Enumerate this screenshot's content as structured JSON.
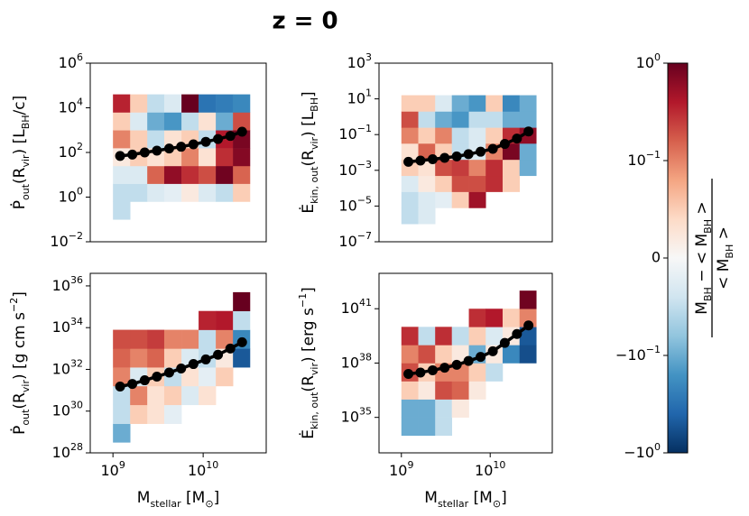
{
  "title": "z = 0",
  "colorbar": {
    "colors": [
      "#053061",
      "#2166ac",
      "#4393c3",
      "#92c5de",
      "#d1e5f0",
      "#f7f7f7",
      "#fddbc7",
      "#f4a582",
      "#d6604d",
      "#b2182b",
      "#67001f"
    ],
    "scale": "symlog",
    "linthresh": 0.1,
    "lim": [
      -1,
      1
    ],
    "ticks": [
      {
        "value": 1,
        "label": "10",
        "sup": "0"
      },
      {
        "value": 0.1,
        "label": "10",
        "sup": "−1"
      },
      0,
      {
        "value": -0.1,
        "label": "−10",
        "sup": "−1"
      },
      {
        "value": -1,
        "label": "−10",
        "sup": "0"
      }
    ],
    "numerator": [
      {
        "text": "M"
      },
      {
        "text": "BH",
        "sub": true
      },
      {
        "text": " − < M"
      },
      {
        "text": "BH",
        "sub": true
      },
      {
        "text": " >"
      }
    ],
    "denominator": [
      {
        "text": "< M"
      },
      {
        "text": "BH",
        "sub": true
      },
      {
        "text": " >"
      }
    ]
  },
  "chart_data": [
    {
      "type": "heatmap",
      "log": true,
      "ylabel": [
        {
          "text": "Ṗ"
        },
        {
          "text": "out",
          "sub": true
        },
        {
          "text": "(R"
        },
        {
          "text": "vir",
          "sub": true
        },
        {
          "text": ") [L"
        },
        {
          "text": "BH",
          "sub": true
        },
        {
          "text": "/c]"
        }
      ],
      "xlim": [
        560000000.0,
        50000000000.0
      ],
      "ylim": [
        0.01,
        1000000
      ],
      "yticks": [
        {
          "value": 0.01,
          "label": "10",
          "sup": "−2"
        },
        {
          "value": 1,
          "label": "10",
          "sup": "0"
        },
        {
          "value": 100,
          "label": "10",
          "sup": "2"
        },
        {
          "value": 10000,
          "label": "10",
          "sup": "4"
        },
        {
          "value": 1000000,
          "label": "10",
          "sup": "6"
        }
      ],
      "heatmap": {
        "xbins": [
          1000000000.0,
          1550000000.0,
          2400000000.0,
          3700000000.0,
          5750000000.0,
          8900000000.0,
          13800000000.0,
          21400000000.0,
          33000000000.0
        ],
        "ybins": [
          0.1,
          0.63,
          4,
          25,
          158,
          1000,
          6300,
          40000
        ],
        "values": [
          [
            -0.05,
            null,
            null,
            null,
            null,
            null,
            null,
            null
          ],
          [
            -0.05,
            -0.05,
            -0.03,
            -0.02,
            0.02,
            -0.03,
            -0.05,
            0.05
          ],
          [
            -0.03,
            -0.03,
            0.15,
            0.6,
            0.3,
            0.2,
            0.9,
            0.15
          ],
          [
            0.02,
            0.05,
            0.03,
            0.05,
            0.1,
            0.03,
            0.3,
            0.7
          ],
          [
            0.1,
            0.05,
            -0.05,
            0.03,
            0.05,
            -0.05,
            0.4,
            0.8
          ],
          [
            0.05,
            -0.03,
            -0.1,
            -0.15,
            -0.05,
            0.03,
            -0.1,
            0.2
          ],
          [
            0.35,
            0.05,
            -0.05,
            -0.03,
            1,
            -0.3,
            -0.25,
            -0.2
          ]
        ]
      },
      "line": {
        "color": "#000000",
        "x": [
          1200000000.0,
          1640000000.0,
          2250000000.0,
          3070000000.0,
          4200000000.0,
          5700000000.0,
          7800000000.0,
          10700000000.0,
          14600000000.0,
          20000000000.0,
          27000000000.0
        ],
        "values": [
          70,
          80,
          100,
          120,
          150,
          180,
          230,
          300,
          400,
          550,
          850
        ]
      }
    },
    {
      "type": "heatmap",
      "log": true,
      "ylabel": [
        {
          "text": "Ė"
        },
        {
          "text": "kin, out",
          "sub": true
        },
        {
          "text": "(R"
        },
        {
          "text": "vir",
          "sub": true
        },
        {
          "text": ") [L"
        },
        {
          "text": "BH",
          "sub": true
        },
        {
          "text": "]"
        }
      ],
      "xlim": [
        560000000.0,
        50000000000.0
      ],
      "ylim": [
        1e-07,
        1000
      ],
      "yticks": [
        {
          "value": 1e-07,
          "label": "10",
          "sup": "−7"
        },
        {
          "value": 1e-05,
          "label": "10",
          "sup": "−5"
        },
        {
          "value": 0.001,
          "label": "10",
          "sup": "−3"
        },
        {
          "value": 0.1,
          "label": "10",
          "sup": "−1"
        },
        {
          "value": 10,
          "label": "10",
          "sup": "1"
        },
        {
          "value": 1000,
          "label": "10",
          "sup": "3"
        }
      ],
      "heatmap": {
        "xbins": [
          1000000000.0,
          1550000000.0,
          2400000000.0,
          3700000000.0,
          5750000000.0,
          8900000000.0,
          13800000000.0,
          21400000000.0,
          33000000000.0
        ],
        "ybins": [
          1e-06,
          7.9e-06,
          6.3e-05,
          0.0005,
          0.004,
          0.032,
          0.25,
          2,
          16
        ],
        "values": [
          [
            -0.05,
            -0.03,
            null,
            null,
            null,
            null,
            null,
            null
          ],
          [
            -0.05,
            -0.03,
            -0.02,
            0.05,
            0.5,
            null,
            null,
            null
          ],
          [
            -0.03,
            0.02,
            0.05,
            0.2,
            0.2,
            0.3,
            0.05,
            null
          ],
          [
            0.05,
            0.03,
            0.2,
            0.25,
            0.1,
            0.3,
            0.05,
            -0.1
          ],
          [
            0.03,
            0.15,
            0.05,
            -0.05,
            -0.03,
            0.1,
            0.8,
            -0.1
          ],
          [
            0.1,
            0.05,
            0.1,
            -0.05,
            -0.03,
            0.05,
            0.3,
            0.6
          ],
          [
            0.2,
            -0.05,
            -0.1,
            -0.15,
            -0.05,
            -0.05,
            -0.1,
            -0.1
          ],
          [
            0.05,
            0.05,
            -0.03,
            -0.1,
            -0.15,
            0.05,
            -0.2,
            -0.1
          ]
        ]
      },
      "line": {
        "color": "#000000",
        "x": [
          1200000000.0,
          1640000000.0,
          2250000000.0,
          3070000000.0,
          4200000000.0,
          5700000000.0,
          7800000000.0,
          10700000000.0,
          14600000000.0,
          20000000000.0,
          27000000000.0
        ],
        "values": [
          0.003,
          0.0035,
          0.0042,
          0.005,
          0.006,
          0.008,
          0.011,
          0.016,
          0.03,
          0.06,
          0.15
        ]
      }
    },
    {
      "type": "heatmap",
      "log": true,
      "ylabel": [
        {
          "text": "Ṗ"
        },
        {
          "text": "out",
          "sub": true
        },
        {
          "text": "(R"
        },
        {
          "text": "vir",
          "sub": true
        },
        {
          "text": ") [g cm s"
        },
        {
          "text": "−2",
          "sup": true
        },
        {
          "text": "]"
        }
      ],
      "xlabel": [
        {
          "text": "M"
        },
        {
          "text": "stellar",
          "sub": true
        },
        {
          "text": " [M"
        },
        {
          "text": "⊙",
          "sub": true
        },
        {
          "text": "]"
        }
      ],
      "xlim": [
        560000000.0,
        50000000000.0
      ],
      "ylim": [
        1e+28,
        4e+36
      ],
      "xticks": [
        {
          "value": 1000000000.0,
          "label": "10",
          "sup": "9"
        },
        {
          "value": 10000000000.0,
          "label": "10",
          "sup": "10"
        }
      ],
      "yticks": [
        {
          "value": 1e+28,
          "label": "10",
          "sup": "28"
        },
        {
          "value": 1e+30,
          "label": "10",
          "sup": "30"
        },
        {
          "value": 1e+32,
          "label": "10",
          "sup": "32"
        },
        {
          "value": 1e+34,
          "label": "10",
          "sup": "34"
        },
        {
          "value": 1e+36,
          "label": "10",
          "sup": "36"
        }
      ],
      "heatmap": {
        "xbins": [
          1000000000.0,
          1550000000.0,
          2400000000.0,
          3700000000.0,
          5750000000.0,
          8900000000.0,
          13800000000.0,
          21400000000.0,
          33000000000.0
        ],
        "ybins": [
          3.2e+28,
          2.5e+29,
          2e+30,
          1.6e+31,
          1.26e+32,
          1e+33,
          7.9e+33,
          6.3e+34,
          5e+35
        ],
        "values": [
          [
            -0.1,
            null,
            null,
            null,
            null,
            null,
            null,
            null
          ],
          [
            -0.05,
            0.05,
            0.03,
            -0.02,
            null,
            null,
            null,
            null
          ],
          [
            -0.05,
            0.1,
            0.03,
            0.05,
            -0.03,
            0.03,
            null,
            null
          ],
          [
            0.1,
            -0.03,
            0.05,
            -0.05,
            0.03,
            -0.02,
            0.05,
            null
          ],
          [
            0.15,
            0.1,
            0.15,
            0.05,
            -0.03,
            -0.05,
            0.02,
            -0.5
          ],
          [
            0.2,
            0.2,
            0.25,
            0.1,
            0.1,
            -0.05,
            0.1,
            -0.2
          ],
          [
            null,
            null,
            null,
            null,
            null,
            0.35,
            0.4,
            -0.05
          ],
          [
            null,
            null,
            null,
            null,
            null,
            null,
            null,
            1
          ]
        ]
      },
      "line": {
        "color": "#000000",
        "x": [
          1200000000.0,
          1640000000.0,
          2250000000.0,
          3070000000.0,
          4200000000.0,
          5700000000.0,
          7800000000.0,
          10700000000.0,
          14600000000.0,
          20000000000.0,
          27000000000.0
        ],
        "values": [
          1.5e+31,
          2e+31,
          3e+31,
          4.5e+31,
          7e+31,
          1.1e+32,
          1.8e+32,
          3e+32,
          5e+32,
          1e+33,
          2e+33
        ]
      }
    },
    {
      "type": "heatmap",
      "log": true,
      "ylabel": [
        {
          "text": "Ė"
        },
        {
          "text": "kin, out",
          "sub": true
        },
        {
          "text": "(R"
        },
        {
          "text": "vir",
          "sub": true
        },
        {
          "text": ") [erg s"
        },
        {
          "text": "−1",
          "sup": true
        },
        {
          "text": "]"
        }
      ],
      "xlabel": [
        {
          "text": "M"
        },
        {
          "text": "stellar",
          "sub": true
        },
        {
          "text": " [M"
        },
        {
          "text": "⊙",
          "sub": true
        },
        {
          "text": "]"
        }
      ],
      "xlim": [
        560000000.0,
        50000000000.0
      ],
      "ylim": [
        1.1e+33,
        9e+42
      ],
      "xticks": [
        {
          "value": 1000000000.0,
          "label": "10",
          "sup": "9"
        },
        {
          "value": 10000000000.0,
          "label": "10",
          "sup": "10"
        }
      ],
      "yticks": [
        {
          "value": 1e+35,
          "label": "10",
          "sup": "35"
        },
        {
          "value": 1e+38,
          "label": "10",
          "sup": "38"
        },
        {
          "value": 1e+41,
          "label": "10",
          "sup": "41"
        }
      ],
      "heatmap": {
        "xbins": [
          1000000000.0,
          1550000000.0,
          2400000000.0,
          3700000000.0,
          5750000000.0,
          8900000000.0,
          13800000000.0,
          21400000000.0,
          33000000000.0
        ],
        "ybins": [
          1e+34,
          1e+35,
          1e+36,
          1e+37,
          1e+38,
          1e+39,
          1e+40,
          1e+41,
          1e+42
        ],
        "values": [
          [
            -0.1,
            -0.1,
            -0.05,
            null,
            null,
            null,
            null,
            null
          ],
          [
            -0.1,
            -0.1,
            -0.05,
            0.02,
            null,
            null,
            null,
            null
          ],
          [
            0.05,
            0.02,
            0.2,
            0.15,
            0.02,
            null,
            null,
            null
          ],
          [
            0.2,
            0.05,
            0.1,
            0.1,
            0.05,
            -0.05,
            null,
            null
          ],
          [
            0.1,
            0.2,
            0.05,
            0.02,
            -0.1,
            0.02,
            -0.2,
            -0.6
          ],
          [
            0.3,
            -0.05,
            0.3,
            -0.05,
            0.05,
            -0.03,
            0.02,
            -0.5
          ],
          [
            null,
            null,
            null,
            null,
            0.3,
            0.4,
            0.05,
            0.1
          ],
          [
            null,
            null,
            null,
            null,
            null,
            null,
            null,
            0.9
          ]
        ]
      },
      "line": {
        "color": "#000000",
        "x": [
          1200000000.0,
          1640000000.0,
          2250000000.0,
          3070000000.0,
          4200000000.0,
          5700000000.0,
          7800000000.0,
          10700000000.0,
          14600000000.0,
          20000000000.0,
          27000000000.0
        ],
        "values": [
          2.5e+37,
          3e+37,
          4e+37,
          5.5e+37,
          8e+37,
          1.3e+38,
          2.2e+38,
          4.5e+38,
          1.3e+39,
          4e+39,
          1.2e+40
        ]
      }
    }
  ]
}
